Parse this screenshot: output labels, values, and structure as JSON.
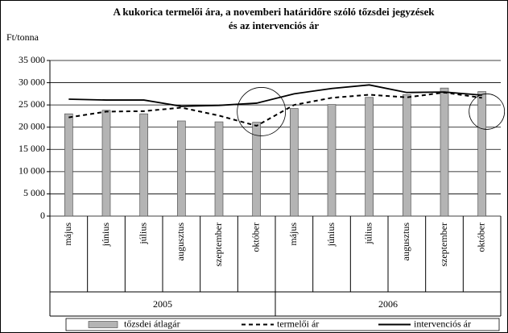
{
  "chart_data": {
    "type": "combo",
    "title": [
      "A kukorica termelői ára, a novemberi határidőre szóló tőzsdei jegyzések",
      "és az intervenciós ár"
    ],
    "y_label": "Ft/tonna",
    "categories": [
      "május",
      "június",
      "július",
      "augusztus",
      "szeptember",
      "október",
      "május",
      "június",
      "július",
      "augusztus",
      "szeptember",
      "október"
    ],
    "category_groups": [
      "2005",
      "2006"
    ],
    "series": [
      {
        "name": "tőzsdei átlagár",
        "type": "bar",
        "color": "#b4b4b4",
        "values": [
          23000,
          23800,
          23000,
          21400,
          21200,
          21100,
          24200,
          25100,
          26700,
          27300,
          28800,
          28000
        ]
      },
      {
        "name": "termelői ár",
        "type": "line",
        "dashed": true,
        "color": "#000000",
        "values": [
          22200,
          23500,
          23600,
          24400,
          22600,
          20300,
          25000,
          26600,
          27300,
          26700,
          27800,
          26600
        ]
      },
      {
        "name": "intervenciós ár",
        "type": "line",
        "dashed": false,
        "color": "#000000",
        "values": [
          26300,
          26100,
          26100,
          24700,
          24900,
          25400,
          27500,
          28700,
          29500,
          27800,
          27900,
          27200
        ]
      }
    ],
    "ylim": [
      0,
      35000
    ],
    "yticks": [
      0,
      {
        "value": 5000,
        "label": "5 000"
      },
      {
        "value": 10000,
        "label": "10 000"
      },
      {
        "value": 15000,
        "label": "15 000"
      },
      {
        "value": 20000,
        "label": "20 000"
      },
      {
        "value": 25000,
        "label": "25 000"
      },
      {
        "value": 30000,
        "label": "30 000"
      },
      {
        "value": 35000,
        "label": "35 000"
      }
    ],
    "grid": true
  }
}
